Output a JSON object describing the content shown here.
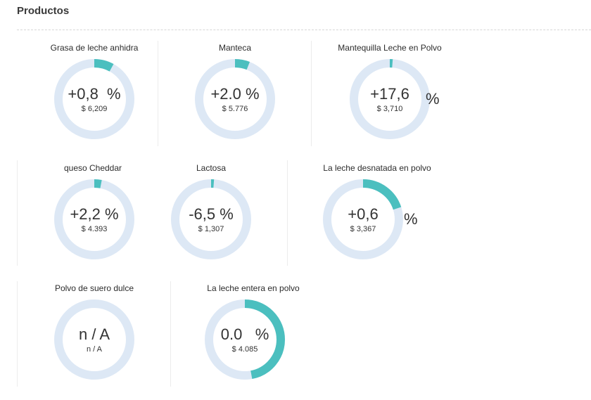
{
  "section": {
    "title": "Productos"
  },
  "colors": {
    "track": "#dde8f5",
    "fill": "#4bbfbf"
  },
  "products": [
    {
      "name": "Grasa de leche anhidra",
      "value": "+0,8",
      "unit": "%",
      "price": "$ 6,209",
      "fraction": 0.08
    },
    {
      "name": "Manteca",
      "value": "+2.0 %",
      "price": "$ 5.776",
      "fraction": 0.06
    },
    {
      "name": "Mantequilla Leche en Polvo",
      "value": "+17,6",
      "unit": "%",
      "price": "$ 3,710",
      "fraction": 0.012
    },
    {
      "name": "queso Cheddar",
      "value": "+2,2 %",
      "price": "$ 4.393",
      "fraction": 0.03
    },
    {
      "name": "Lactosa",
      "value": "-6,5 %",
      "price": "$ 1,307",
      "fraction": 0.012
    },
    {
      "name": "La leche desnatada en polvo",
      "value": "+0,6",
      "unit": "%",
      "price": "$ 3,367",
      "fraction": 0.2
    },
    {
      "name": "Polvo de suero dulce",
      "value": "n / A",
      "price": "n / A",
      "fraction": 0
    },
    {
      "name": "La leche entera en polvo",
      "value": "0.0",
      "unit": "%",
      "price": "$ 4.085",
      "fraction": 0.47
    }
  ]
}
